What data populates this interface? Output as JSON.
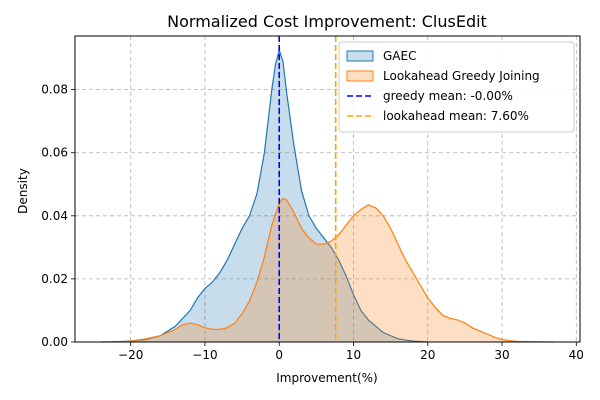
{
  "chart_data": {
    "type": "area",
    "title": "Normalized Cost Improvement: ClusEdit",
    "xlabel": "Improvement(%)",
    "ylabel": "Density",
    "xlim": [
      -27.5,
      40.5
    ],
    "ylim": [
      0,
      0.097
    ],
    "xticks": [
      -20,
      -10,
      0,
      10,
      20,
      30,
      40
    ],
    "yticks": [
      0.0,
      0.02,
      0.04,
      0.06,
      0.08
    ],
    "ytick_labels": [
      "0.00",
      "0.02",
      "0.04",
      "0.06",
      "0.08"
    ],
    "grid": true,
    "legend_position": "top-right",
    "series": [
      {
        "name": "GAEC",
        "color": "#1f77b4",
        "fill_opacity": 0.25,
        "x": [
          -24,
          -22,
          -20,
          -18,
          -16,
          -14,
          -12,
          -11,
          -10,
          -9,
          -8,
          -7,
          -6,
          -5,
          -4,
          -3,
          -2,
          -1,
          -0.5,
          0,
          0.5,
          1,
          2,
          3,
          4,
          5,
          6,
          7,
          8,
          9,
          10,
          11,
          12,
          14,
          16,
          18,
          20
        ],
        "values": [
          0.0,
          0.0001,
          0.0003,
          0.0008,
          0.002,
          0.005,
          0.01,
          0.014,
          0.017,
          0.019,
          0.022,
          0.026,
          0.031,
          0.036,
          0.04,
          0.047,
          0.06,
          0.08,
          0.088,
          0.0925,
          0.089,
          0.079,
          0.062,
          0.048,
          0.04,
          0.036,
          0.033,
          0.03,
          0.026,
          0.021,
          0.015,
          0.01,
          0.007,
          0.003,
          0.001,
          0.0003,
          0.0
        ]
      },
      {
        "name": "Lookahead Greedy Joining",
        "color": "#ff7f0e",
        "fill_opacity": 0.25,
        "x": [
          -22,
          -20,
          -18,
          -16,
          -14,
          -13,
          -12,
          -11,
          -10,
          -9,
          -8,
          -7,
          -6,
          -5,
          -4,
          -3,
          -2,
          -1,
          0,
          0.5,
          1,
          2,
          3,
          4,
          5,
          6,
          7,
          8,
          9,
          10,
          11,
          12,
          13,
          14,
          15,
          16,
          17,
          18,
          19,
          20,
          21,
          22,
          23,
          24,
          25,
          26,
          27,
          28,
          29,
          30,
          31,
          32,
          34,
          37
        ],
        "values": [
          0.0,
          0.0003,
          0.001,
          0.002,
          0.004,
          0.0055,
          0.006,
          0.0055,
          0.0045,
          0.004,
          0.004,
          0.0045,
          0.006,
          0.009,
          0.013,
          0.019,
          0.027,
          0.037,
          0.044,
          0.0455,
          0.045,
          0.041,
          0.036,
          0.033,
          0.031,
          0.031,
          0.032,
          0.034,
          0.037,
          0.04,
          0.042,
          0.0435,
          0.0425,
          0.04,
          0.036,
          0.031,
          0.026,
          0.022,
          0.018,
          0.014,
          0.011,
          0.0085,
          0.0075,
          0.007,
          0.006,
          0.0045,
          0.0035,
          0.0025,
          0.0015,
          0.0008,
          0.0004,
          0.0002,
          0.0001,
          0.0
        ]
      }
    ],
    "vlines": [
      {
        "name": "greedy mean: -0.00%",
        "x": 0.0,
        "color": "#0000ff",
        "style": "dashed"
      },
      {
        "name": "lookahead mean: 7.60%",
        "x": 7.6,
        "color": "#ffa500",
        "style": "dashed"
      }
    ]
  }
}
